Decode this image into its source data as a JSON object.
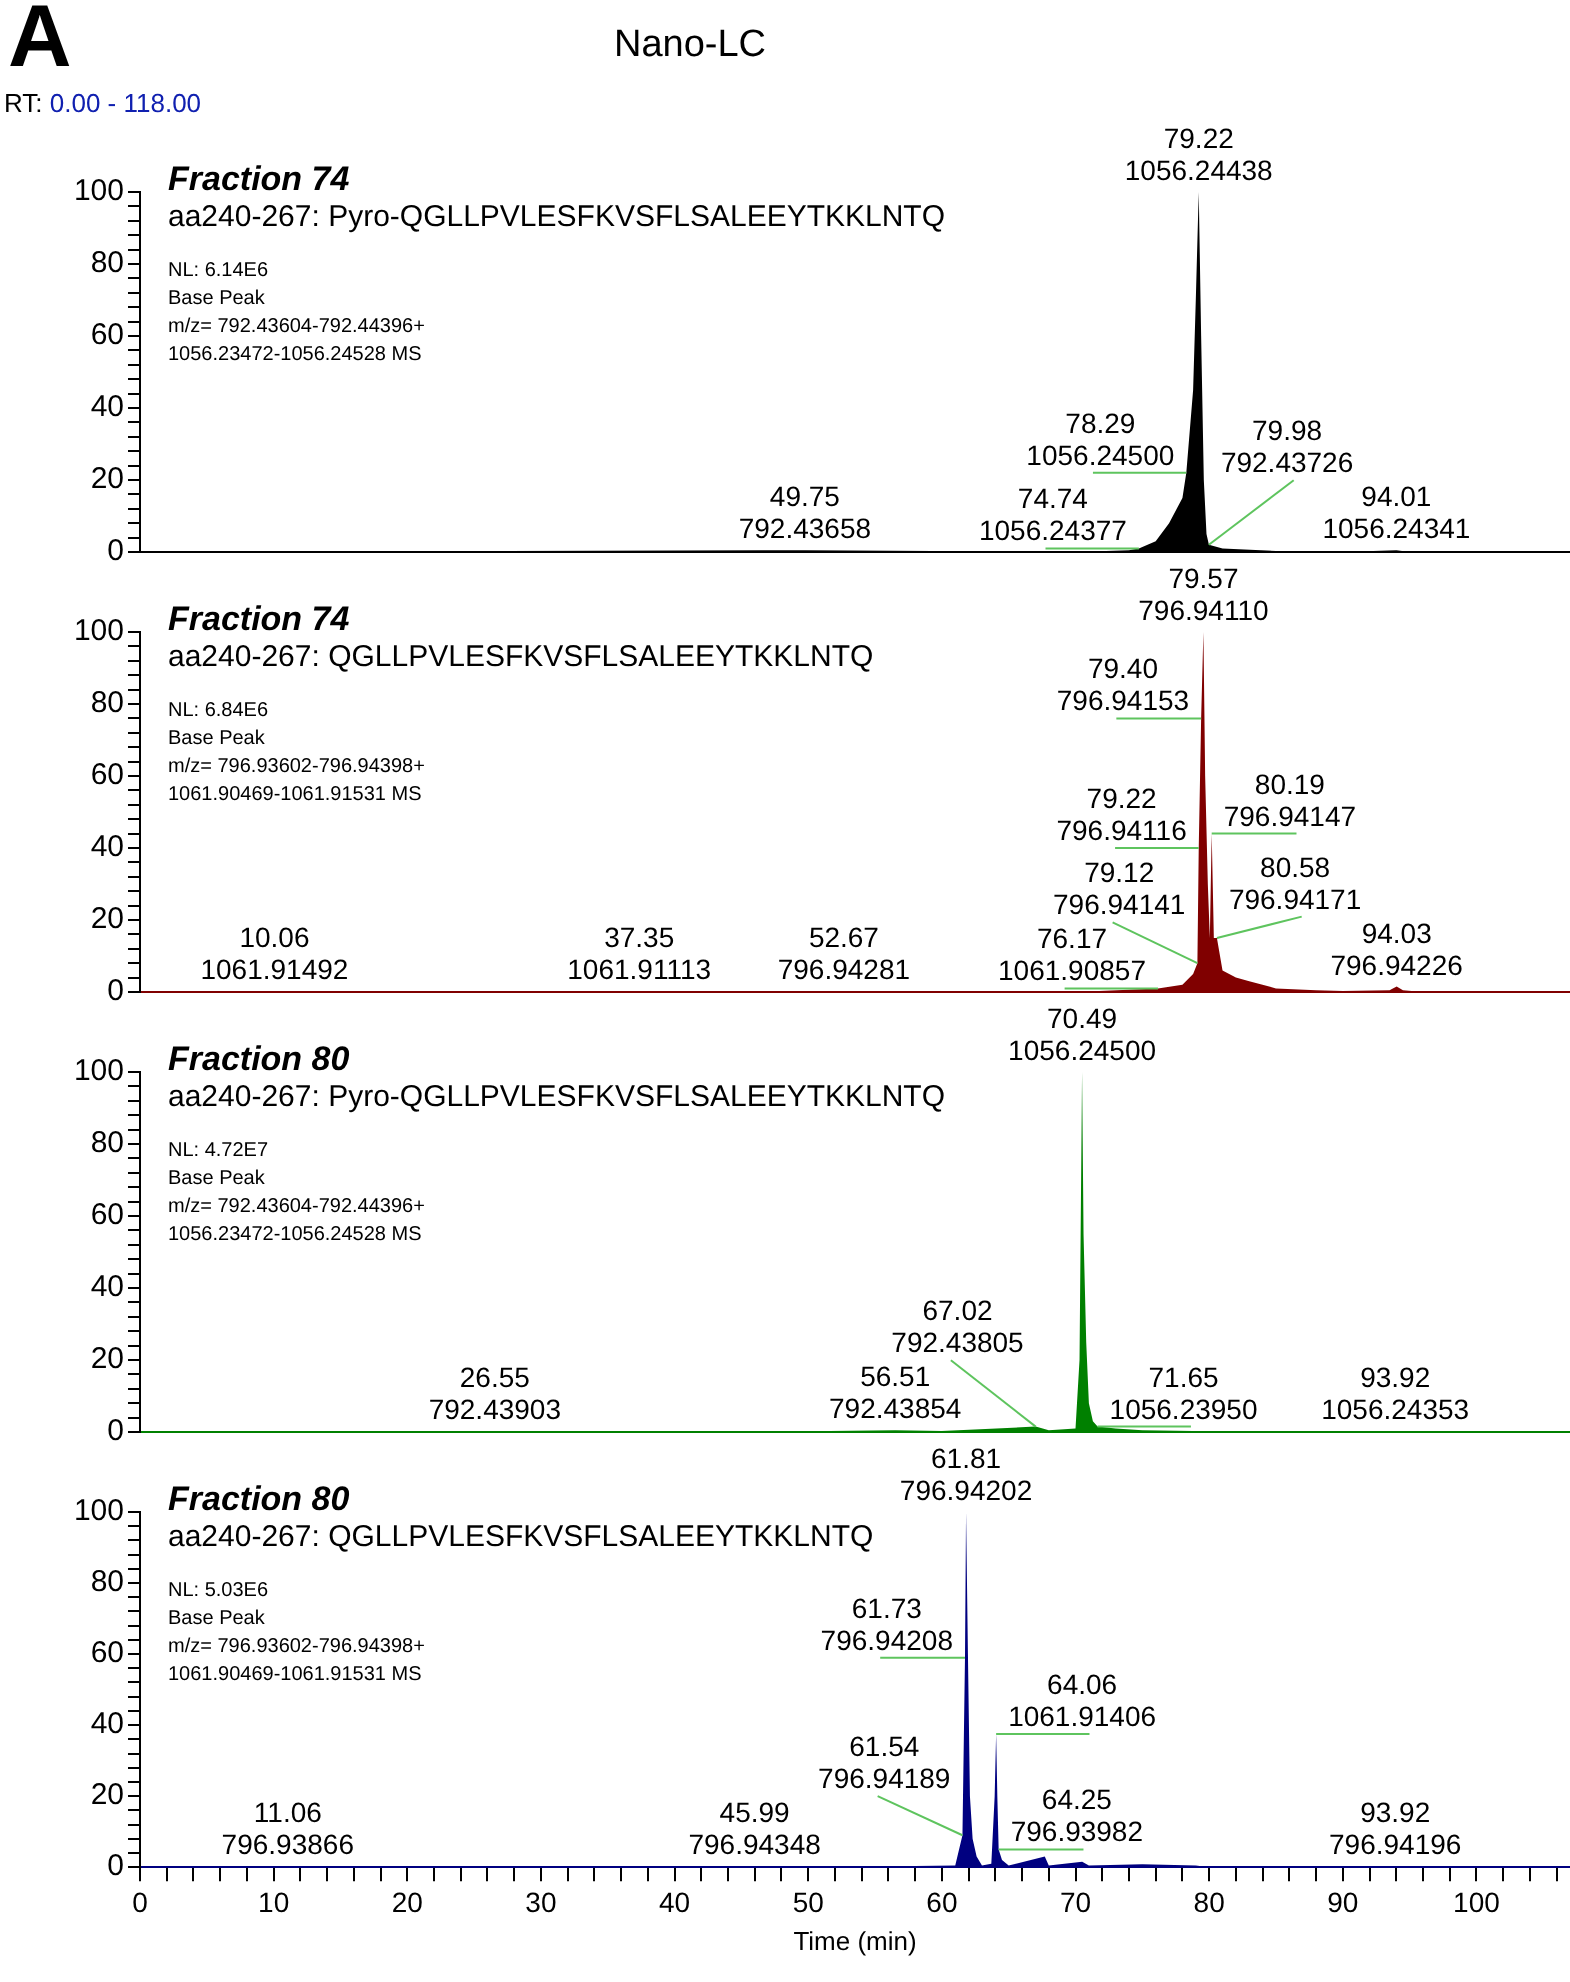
{
  "chart_data": [
    {
      "type": "area",
      "title": "Fraction 74",
      "subtitle": "aa240-267: Pyro-QGLLPVLESFKVSFLSALEEYTKKLNTQ",
      "color": "#000000",
      "x": [
        0,
        49.75,
        70,
        74,
        74.74,
        76,
        77,
        78,
        78.29,
        78.8,
        79.0,
        79.22,
        79.4,
        79.6,
        79.8,
        79.98,
        81,
        85,
        90,
        94.01,
        95,
        107
      ],
      "values": [
        0,
        0.5,
        0,
        0.5,
        1,
        3,
        8,
        15,
        22,
        45,
        70,
        100,
        60,
        20,
        5,
        2,
        1,
        0.3,
        0,
        0.5,
        0,
        0
      ],
      "xlim": [
        0,
        107
      ],
      "ylim": [
        0,
        100
      ],
      "yticks": [
        0,
        {
          "value": 4,
          "label": null
        },
        {
          "value": 8,
          "label": null
        },
        {
          "value": 12,
          "label": null
        },
        {
          "value": 16,
          "label": null
        },
        20,
        {
          "value": 24,
          "label": null
        },
        {
          "value": 28,
          "label": null
        },
        {
          "value": 32,
          "label": null
        },
        {
          "value": 36,
          "label": null
        },
        40,
        {
          "value": 44,
          "label": null
        },
        {
          "value": 48,
          "label": null
        },
        {
          "value": 52,
          "label": null
        },
        {
          "value": 56,
          "label": null
        },
        60,
        {
          "value": 64,
          "label": null
        },
        {
          "value": 68,
          "label": null
        },
        {
          "value": 72,
          "label": null
        },
        {
          "value": 76,
          "label": null
        },
        80,
        {
          "value": 84,
          "label": null
        },
        {
          "value": 88,
          "label": null
        },
        {
          "value": 92,
          "label": null
        },
        {
          "value": 96,
          "label": null
        },
        100
      ],
      "tick_labels": "y",
      "grid": false,
      "legend": false,
      "annotations": [
        "A",
        "Nano-LC",
        "RT: 0.00 - 118.00",
        "NL: 6.14E6",
        "Base Peak",
        "m/z= 792.43604-792.44396+",
        "1056.23472-1056.24528 MS",
        {
          "text": "79.22\n1056.24438",
          "x": 79.22,
          "y": 100
        },
        {
          "text": "78.29\n1056.24500",
          "x": 78.29,
          "y": 22
        },
        {
          "text": "49.75\n792.43658",
          "x": 49.75,
          "y": 0.5
        },
        {
          "text": "74.74\n1056.24377",
          "x": 74.74,
          "y": 1
        },
        {
          "text": "79.98\n792.43726",
          "x": 79.98,
          "y": 2
        },
        {
          "text": "94.01\n1056.24341",
          "x": 94.01,
          "y": 0.5
        }
      ]
    },
    {
      "type": "area",
      "title": "Fraction 74",
      "subtitle": "aa240-267: QGLLPVLESFKVSFLSALEEYTKKLNTQ",
      "color": "#800000",
      "x": [
        0,
        10.06,
        37.35,
        52.67,
        70,
        76.17,
        78,
        78.8,
        79.12,
        79.22,
        79.4,
        79.57,
        79.7,
        79.9,
        80.05,
        80.19,
        80.35,
        80.58,
        81,
        81.5,
        82,
        83,
        85,
        88,
        90,
        93.5,
        94.03,
        94.5,
        96,
        107
      ],
      "values": [
        0,
        0.3,
        0.3,
        0.3,
        0,
        1,
        2,
        5,
        8,
        40,
        76,
        100,
        60,
        30,
        15,
        44,
        15,
        15,
        6,
        5,
        4,
        3,
        1,
        0.5,
        0.3,
        0.5,
        1.5,
        0.5,
        0,
        0
      ],
      "xlim": [
        0,
        107
      ],
      "ylim": [
        0,
        100
      ],
      "yticks": [
        0,
        {
          "value": 4,
          "label": null
        },
        {
          "value": 8,
          "label": null
        },
        {
          "value": 12,
          "label": null
        },
        {
          "value": 16,
          "label": null
        },
        20,
        {
          "value": 24,
          "label": null
        },
        {
          "value": 28,
          "label": null
        },
        {
          "value": 32,
          "label": null
        },
        {
          "value": 36,
          "label": null
        },
        40,
        {
          "value": 44,
          "label": null
        },
        {
          "value": 48,
          "label": null
        },
        {
          "value": 52,
          "label": null
        },
        {
          "value": 56,
          "label": null
        },
        60,
        {
          "value": 64,
          "label": null
        },
        {
          "value": 68,
          "label": null
        },
        {
          "value": 72,
          "label": null
        },
        {
          "value": 76,
          "label": null
        },
        80,
        {
          "value": 84,
          "label": null
        },
        {
          "value": 88,
          "label": null
        },
        {
          "value": 92,
          "label": null
        },
        {
          "value": 96,
          "label": null
        },
        100
      ],
      "tick_labels": "y",
      "grid": false,
      "legend": false,
      "annotations": [
        "NL: 6.84E6",
        "Base Peak",
        "m/z= 796.93602-796.94398+",
        "1061.90469-1061.91531 MS",
        {
          "text": "79.57\n796.94110",
          "x": 79.57,
          "y": 100
        },
        {
          "text": "79.40\n796.94153",
          "x": 79.4,
          "y": 76
        },
        {
          "text": "79.22\n796.94116",
          "x": 79.22,
          "y": 40
        },
        {
          "text": "79.12\n796.94141",
          "x": 79.12,
          "y": 8
        },
        {
          "text": "80.19\n796.94147",
          "x": 80.19,
          "y": 44
        },
        {
          "text": "80.58\n796.94171",
          "x": 80.58,
          "y": 15
        },
        {
          "text": "10.06\n1061.91492",
          "x": 10.06,
          "y": 0.3
        },
        {
          "text": "37.35\n1061.91113",
          "x": 37.35,
          "y": 0.3
        },
        {
          "text": "52.67\n796.94281",
          "x": 52.67,
          "y": 0.3
        },
        {
          "text": "76.17\n1061.90857",
          "x": 76.17,
          "y": 1
        },
        {
          "text": "94.03\n796.94226",
          "x": 94.03,
          "y": 1.5
        }
      ]
    },
    {
      "type": "area",
      "title": "Fraction 80",
      "subtitle": "aa240-267: Pyro-QGLLPVLESFKVSFLSALEEYTKKLNTQ",
      "color": "#008000",
      "x": [
        0,
        26.55,
        50,
        56.51,
        60,
        67.02,
        68,
        70,
        70.3,
        70.49,
        70.6,
        70.8,
        71,
        71.3,
        71.65,
        73,
        75,
        80,
        93.92,
        107
      ],
      "values": [
        0,
        0.3,
        0.2,
        0.5,
        0.3,
        1.5,
        0.5,
        1,
        20,
        100,
        55,
        25,
        8,
        3,
        1.5,
        1,
        0.5,
        0.2,
        0.3,
        0
      ],
      "xlim": [
        0,
        107
      ],
      "ylim": [
        0,
        100
      ],
      "yticks": [
        0,
        {
          "value": 4,
          "label": null
        },
        {
          "value": 8,
          "label": null
        },
        {
          "value": 12,
          "label": null
        },
        {
          "value": 16,
          "label": null
        },
        20,
        {
          "value": 24,
          "label": null
        },
        {
          "value": 28,
          "label": null
        },
        {
          "value": 32,
          "label": null
        },
        {
          "value": 36,
          "label": null
        },
        40,
        {
          "value": 44,
          "label": null
        },
        {
          "value": 48,
          "label": null
        },
        {
          "value": 52,
          "label": null
        },
        {
          "value": 56,
          "label": null
        },
        60,
        {
          "value": 64,
          "label": null
        },
        {
          "value": 68,
          "label": null
        },
        {
          "value": 72,
          "label": null
        },
        {
          "value": 76,
          "label": null
        },
        80,
        {
          "value": 84,
          "label": null
        },
        {
          "value": 88,
          "label": null
        },
        {
          "value": 92,
          "label": null
        },
        {
          "value": 96,
          "label": null
        },
        100
      ],
      "tick_labels": "y",
      "grid": false,
      "legend": false,
      "annotations": [
        "NL: 4.72E7",
        "Base Peak",
        "m/z= 792.43604-792.44396+",
        "1056.23472-1056.24528 MS",
        {
          "text": "70.49\n1056.24500",
          "x": 70.49,
          "y": 100
        },
        {
          "text": "26.55\n792.43903",
          "x": 26.55,
          "y": 0.3
        },
        {
          "text": "56.51\n792.43854",
          "x": 56.51,
          "y": 0.5
        },
        {
          "text": "67.02\n792.43805",
          "x": 67.02,
          "y": 1.5
        },
        {
          "text": "71.65\n1056.23950",
          "x": 71.65,
          "y": 1.5
        },
        {
          "text": "93.92\n1056.24353",
          "x": 93.92,
          "y": 0.3
        }
      ]
    },
    {
      "type": "area",
      "title": "Fraction 80",
      "subtitle": "aa240-267: QGLLPVLESFKVSFLSALEEYTKKLNTQ",
      "color": "#000080",
      "xlabel": "Time (min)",
      "x": [
        0,
        11.06,
        30,
        45.99,
        55,
        61,
        61.54,
        61.73,
        61.81,
        61.95,
        62.1,
        62.3,
        62.6,
        63,
        63.7,
        63.95,
        64.06,
        64.15,
        64.25,
        64.5,
        65,
        67.7,
        68,
        70.5,
        71,
        75,
        79,
        80,
        93.92,
        107
      ],
      "values": [
        0,
        0.3,
        0.2,
        0.3,
        0.2,
        0.5,
        9,
        59,
        100,
        60,
        20,
        8,
        3,
        0.5,
        1,
        20,
        37.5,
        20,
        5,
        2,
        0.5,
        3,
        0.5,
        1.5,
        0.5,
        0.8,
        0.5,
        0,
        0.3,
        0
      ],
      "xlim": [
        0,
        107
      ],
      "ylim": [
        0,
        100
      ],
      "xticks": [
        0,
        {
          "value": 2,
          "label": null
        },
        {
          "value": 4,
          "label": null
        },
        {
          "value": 6,
          "label": null
        },
        {
          "value": 8,
          "label": null
        },
        10,
        {
          "value": 12,
          "label": null
        },
        {
          "value": 14,
          "label": null
        },
        {
          "value": 16,
          "label": null
        },
        {
          "value": 18,
          "label": null
        },
        20,
        {
          "value": 22,
          "label": null
        },
        {
          "value": 24,
          "label": null
        },
        {
          "value": 26,
          "label": null
        },
        {
          "value": 28,
          "label": null
        },
        30,
        {
          "value": 32,
          "label": null
        },
        {
          "value": 34,
          "label": null
        },
        {
          "value": 36,
          "label": null
        },
        {
          "value": 38,
          "label": null
        },
        40,
        {
          "value": 42,
          "label": null
        },
        {
          "value": 44,
          "label": null
        },
        {
          "value": 46,
          "label": null
        },
        {
          "value": 48,
          "label": null
        },
        50,
        {
          "value": 52,
          "label": null
        },
        {
          "value": 54,
          "label": null
        },
        {
          "value": 56,
          "label": null
        },
        {
          "value": 58,
          "label": null
        },
        60,
        {
          "value": 62,
          "label": null
        },
        {
          "value": 64,
          "label": null
        },
        {
          "value": 66,
          "label": null
        },
        {
          "value": 68,
          "label": null
        },
        70,
        {
          "value": 72,
          "label": null
        },
        {
          "value": 74,
          "label": null
        },
        {
          "value": 76,
          "label": null
        },
        {
          "value": 78,
          "label": null
        },
        80,
        {
          "value": 82,
          "label": null
        },
        {
          "value": 84,
          "label": null
        },
        {
          "value": 86,
          "label": null
        },
        {
          "value": 88,
          "label": null
        },
        90,
        {
          "value": 92,
          "label": null
        },
        {
          "value": 94,
          "label": null
        },
        {
          "value": 96,
          "label": null
        },
        {
          "value": 98,
          "label": null
        },
        100,
        {
          "value": 102,
          "label": null
        },
        {
          "value": 104,
          "label": null
        },
        {
          "value": 106,
          "label": null
        }
      ],
      "yticks": [
        0,
        {
          "value": 4,
          "label": null
        },
        {
          "value": 8,
          "label": null
        },
        {
          "value": 12,
          "label": null
        },
        {
          "value": 16,
          "label": null
        },
        20,
        {
          "value": 24,
          "label": null
        },
        {
          "value": 28,
          "label": null
        },
        {
          "value": 32,
          "label": null
        },
        {
          "value": 36,
          "label": null
        },
        40,
        {
          "value": 44,
          "label": null
        },
        {
          "value": 48,
          "label": null
        },
        {
          "value": 52,
          "label": null
        },
        {
          "value": 56,
          "label": null
        },
        60,
        {
          "value": 64,
          "label": null
        },
        {
          "value": 68,
          "label": null
        },
        {
          "value": 72,
          "label": null
        },
        {
          "value": 76,
          "label": null
        },
        80,
        {
          "value": 84,
          "label": null
        },
        {
          "value": 88,
          "label": null
        },
        {
          "value": 92,
          "label": null
        },
        {
          "value": 96,
          "label": null
        },
        100
      ],
      "grid": false,
      "legend": false,
      "annotations": [
        "NL: 5.03E6",
        "Base Peak",
        "m/z= 796.93602-796.94398+",
        "1061.90469-1061.91531 MS",
        {
          "text": "61.81\n796.94202",
          "x": 61.81,
          "y": 100
        },
        {
          "text": "61.73\n796.94208",
          "x": 61.73,
          "y": 59
        },
        {
          "text": "61.54\n796.94189",
          "x": 61.54,
          "y": 9
        },
        {
          "text": "64.06\n1061.91406",
          "x": 64.06,
          "y": 37.5
        },
        {
          "text": "64.25\n796.93982",
          "x": 64.25,
          "y": 5
        },
        {
          "text": "11.06\n796.93866",
          "x": 11.06,
          "y": 0.3
        },
        {
          "text": "45.99\n796.94348",
          "x": 45.99,
          "y": 0.3
        },
        {
          "text": "93.92\n796.94196",
          "x": 93.92,
          "y": 0.3
        }
      ]
    }
  ]
}
